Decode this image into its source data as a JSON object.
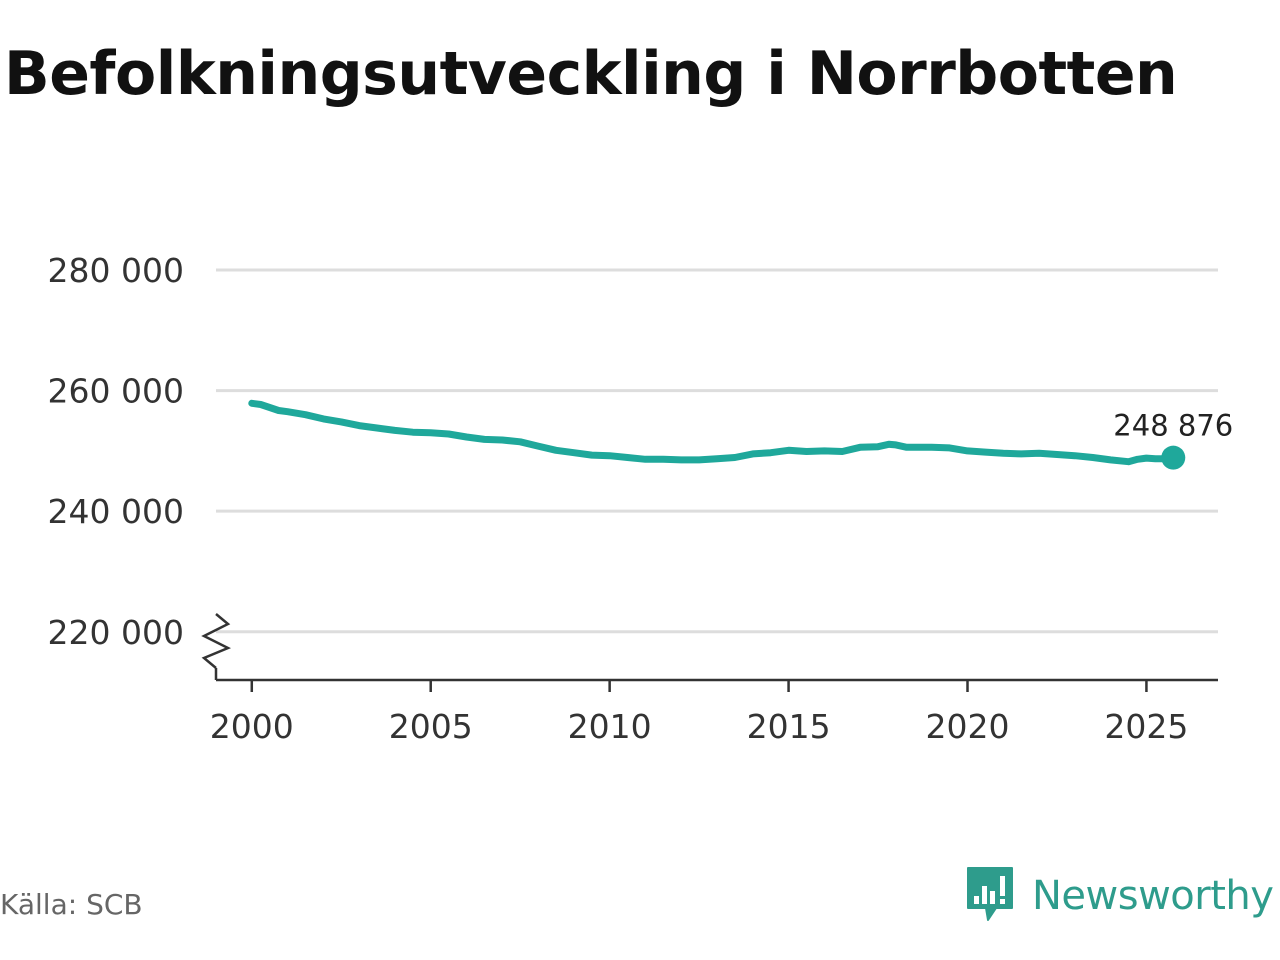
{
  "title": "Befolkningsutveckling i Norrbotten",
  "source": "Källa: SCB",
  "brand": {
    "name": "Newsworthy",
    "logo_icon": "newsworthy-logo-icon",
    "color": "#2e9c8c"
  },
  "colors": {
    "line": "#1fa89b",
    "grid": "#dddddd",
    "axis": "#333333"
  },
  "chart_data": {
    "type": "line",
    "title": "Befolkningsutveckling i Norrbotten",
    "xlabel": "",
    "ylabel": "",
    "xlim": [
      1999.0,
      2027.0
    ],
    "ylim": [
      212000,
      280000
    ],
    "y_ticks": [
      220000,
      240000,
      260000,
      280000
    ],
    "y_tick_labels": [
      "220 000",
      "240 000",
      "260 000",
      "280 000"
    ],
    "x_ticks": [
      2000,
      2005,
      2010,
      2015,
      2020,
      2025
    ],
    "x_tick_labels": [
      "2000",
      "2005",
      "2010",
      "2015",
      "2020",
      "2025"
    ],
    "axis_break": true,
    "grid": true,
    "end_label": "248 876",
    "series": [
      {
        "name": "Befolkning",
        "x": [
          2000.0,
          2000.25,
          2000.5,
          2000.75,
          2001.0,
          2001.5,
          2002.0,
          2002.5,
          2003.0,
          2003.5,
          2004.0,
          2004.5,
          2005.0,
          2005.5,
          2006.0,
          2006.5,
          2007.0,
          2007.5,
          2008.0,
          2008.5,
          2009.0,
          2009.5,
          2010.0,
          2010.5,
          2011.0,
          2011.5,
          2012.0,
          2012.5,
          2013.0,
          2013.5,
          2014.0,
          2014.5,
          2015.0,
          2015.5,
          2016.0,
          2016.5,
          2017.0,
          2017.5,
          2017.8,
          2018.0,
          2018.3,
          2018.6,
          2019.0,
          2019.5,
          2020.0,
          2020.5,
          2021.0,
          2021.5,
          2022.0,
          2022.5,
          2023.0,
          2023.5,
          2024.0,
          2024.5,
          2024.75,
          2025.0,
          2025.25,
          2025.5,
          2025.75
        ],
        "values": [
          257900,
          257700,
          257200,
          256700,
          256500,
          256000,
          255300,
          254800,
          254200,
          253800,
          253400,
          253100,
          253000,
          252800,
          252300,
          251900,
          251800,
          251500,
          250800,
          250100,
          249700,
          249300,
          249200,
          248900,
          248600,
          248600,
          248500,
          248500,
          248700,
          248900,
          249500,
          249700,
          250100,
          249900,
          250000,
          249900,
          250600,
          250700,
          251100,
          251000,
          250600,
          250600,
          250600,
          250500,
          250000,
          249800,
          249600,
          249500,
          249600,
          249400,
          249200,
          248900,
          248500,
          248200,
          248600,
          248800,
          248700,
          248700,
          248876
        ]
      }
    ]
  }
}
